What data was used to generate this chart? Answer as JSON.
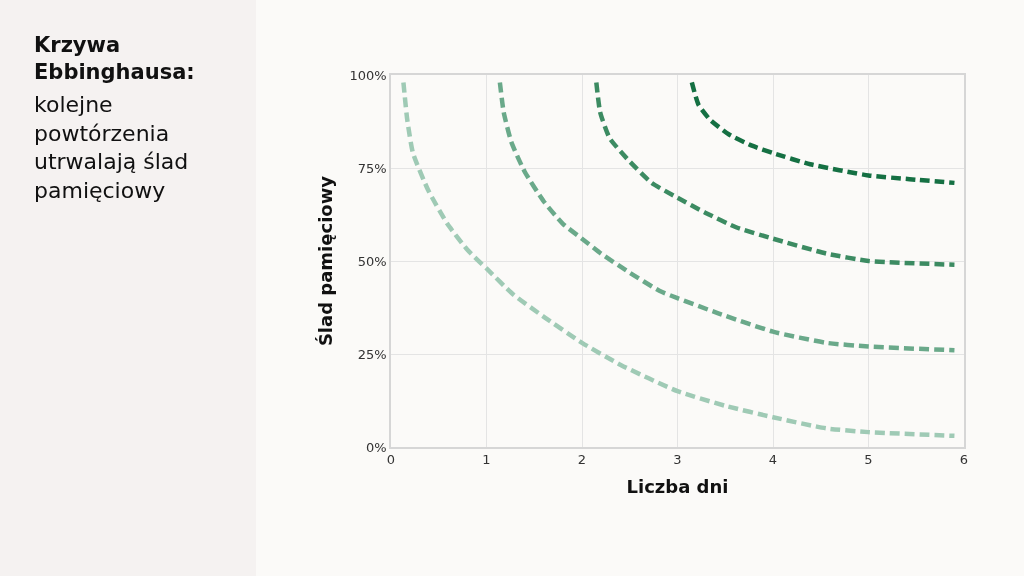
{
  "chart_data": {
    "type": "line",
    "title": "Krzywa Ebbinghausa:",
    "subtitle": "kolejne powtórzenia utrwalają ślad pamięciowy",
    "xlabel": "Liczba dni",
    "ylabel": "Ślad pamięciowy",
    "xlim": [
      0,
      6
    ],
    "xticks": [
      0,
      1,
      2,
      3,
      4,
      5,
      6
    ],
    "ylim": [
      0,
      100
    ],
    "yticks": [
      {
        "value": 0,
        "label": "0%"
      },
      {
        "value": 25,
        "label": "25%"
      },
      {
        "value": 50,
        "label": "50%"
      },
      {
        "value": 75,
        "label": "75%"
      },
      {
        "value": 100,
        "label": "100%"
      }
    ],
    "grid": true,
    "marker": "none",
    "line_style": "dashed",
    "series": [
      {
        "color": "#9fcab5",
        "x": [
          0.13,
          0.17,
          0.23,
          0.39,
          0.59,
          0.8,
          1.0,
          1.28,
          1.6,
          2.0,
          2.41,
          3.0,
          3.51,
          4.0,
          4.56,
          5.0,
          5.9
        ],
        "values": [
          98,
          88,
          79,
          69,
          60,
          53,
          48,
          41,
          35,
          28,
          22,
          15,
          11,
          8,
          5,
          4,
          3
        ]
      },
      {
        "color": "#6aa98a",
        "x": [
          1.14,
          1.18,
          1.26,
          1.4,
          1.6,
          1.8,
          2.0,
          2.2,
          2.49,
          2.81,
          3.0,
          3.42,
          4.0,
          4.56,
          5.0,
          5.9
        ],
        "values": [
          98,
          90,
          82,
          74,
          66,
          60,
          56,
          52,
          47,
          42,
          40,
          36,
          31,
          28,
          27,
          26
        ]
      },
      {
        "color": "#3c8b62",
        "x": [
          2.15,
          2.19,
          2.29,
          2.49,
          2.73,
          3.0,
          3.29,
          3.62,
          4.0,
          4.56,
          5.0,
          5.9
        ],
        "values": [
          98,
          90,
          83,
          77,
          71,
          67,
          63,
          59,
          56,
          52,
          50,
          49
        ]
      },
      {
        "color": "#157043",
        "x": [
          3.15,
          3.22,
          3.34,
          3.54,
          3.78,
          4.0,
          4.39,
          5.0,
          5.43,
          5.9
        ],
        "values": [
          98,
          92,
          88,
          84,
          81,
          79,
          76,
          73,
          72,
          71
        ]
      }
    ]
  }
}
